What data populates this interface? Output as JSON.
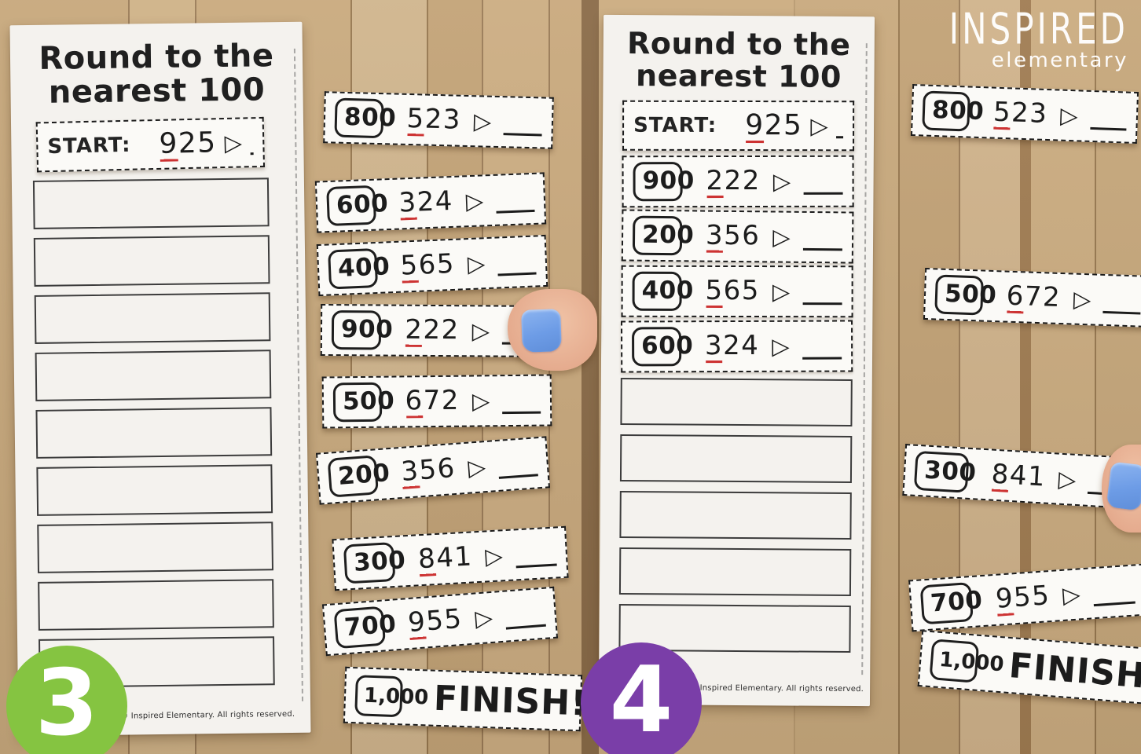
{
  "brand": {
    "line1": "INSPIRED",
    "line2": "elementary"
  },
  "symbols": {
    "arrow": "▷"
  },
  "colors": {
    "badge_3_green": "#85c441",
    "badge_4_purple": "#7a3ea8",
    "nail_blue": "#6d9ce6",
    "underline_red": "#cd3333",
    "wood_base": "#c9aa7e",
    "paper": "#f4f2ee",
    "ink": "#1b1b1b"
  },
  "panels": [
    {
      "badge": "3",
      "title_line1": "Round to the",
      "title_line2": "nearest 100",
      "start_label": "START:",
      "start_number": "925",
      "empty_slots": 9,
      "placed_strips": [],
      "copyright": "© Inspired Elementary. All rights reserved."
    },
    {
      "badge": "4",
      "title_line1": "Round to the",
      "title_line2": "nearest 100",
      "start_label": "START:",
      "start_number": "925",
      "empty_slots": 5,
      "placed_strips": [
        {
          "answer": "900",
          "number": "222"
        },
        {
          "answer": "200",
          "number": "356"
        },
        {
          "answer": "400",
          "number": "565"
        },
        {
          "answer": "600",
          "number": "324"
        }
      ],
      "copyright": "© Inspired Elementary. All rights reserved."
    }
  ],
  "loose_strips_middle": [
    {
      "answer": "800",
      "number": "523"
    },
    {
      "answer": "600",
      "number": "324"
    },
    {
      "answer": "400",
      "number": "565"
    },
    {
      "answer": "900",
      "number": "222"
    },
    {
      "answer": "500",
      "number": "672"
    },
    {
      "answer": "200",
      "number": "356"
    },
    {
      "answer": "300",
      "number": "841"
    },
    {
      "answer": "700",
      "number": "955"
    },
    {
      "answer": "1,000",
      "label": "FINISH!"
    }
  ],
  "loose_strips_right": [
    {
      "answer": "800",
      "number": "523"
    },
    {
      "answer": "500",
      "number": "672"
    },
    {
      "answer": "300",
      "number": "841"
    },
    {
      "answer": "700",
      "number": "955"
    },
    {
      "answer": "1,000",
      "label": "FINISH!"
    }
  ]
}
